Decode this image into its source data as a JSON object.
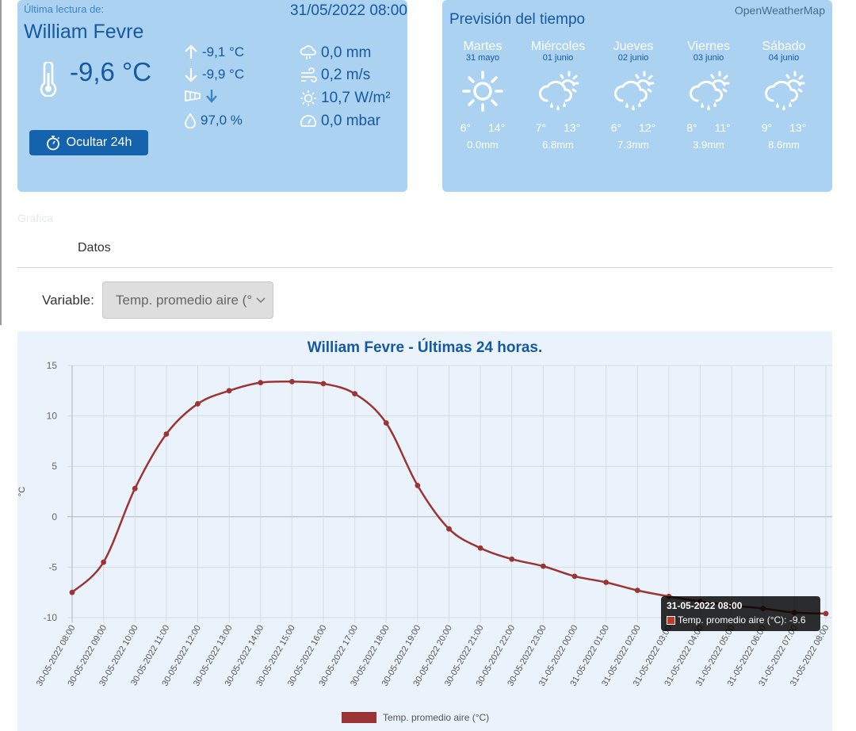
{
  "current": {
    "last_reading_label": "Última lectura de:",
    "datetime": "31/05/2022 08:00",
    "station": "William Fevre",
    "temperature": "-9,6 °C",
    "temp_max": "-9,1 °C",
    "temp_min": "-9,9 °C",
    "humidity": "97,0 %",
    "rain": "0,0 mm",
    "wind": "0,2 m/s",
    "radiation": "10,7 W/m²",
    "pressure": "0,0 mbar",
    "hide_button": "Ocultar 24h",
    "wind_direction_icon": "arrow-down-icon"
  },
  "forecast": {
    "title": "Previsión del tiempo",
    "source": "OpenWeatherMap",
    "days": [
      {
        "name": "Martes",
        "date": "31 mayo",
        "min": "6°",
        "max": "14°",
        "rain": "0.0mm",
        "icon": "sun-icon"
      },
      {
        "name": "Miércoles",
        "date": "01 junio",
        "min": "7°",
        "max": "13°",
        "rain": "6.8mm",
        "icon": "rain-sun-icon"
      },
      {
        "name": "Jueves",
        "date": "02 junio",
        "min": "6°",
        "max": "12°",
        "rain": "7.3mm",
        "icon": "rain-sun-icon"
      },
      {
        "name": "Viernes",
        "date": "03 junio",
        "min": "8°",
        "max": "11°",
        "rain": "3.9mm",
        "icon": "rain-sun-icon"
      },
      {
        "name": "Sábado",
        "date": "04 junio",
        "min": "9°",
        "max": "13°",
        "rain": "8.6mm",
        "icon": "rain-sun-icon"
      }
    ]
  },
  "tabs": {
    "grafica": "Gráfica",
    "datos": "Datos"
  },
  "variable": {
    "label": "Variable:",
    "selected": "Temp. promedio aire (°"
  },
  "colors": {
    "accent": "#1559a0",
    "card": "#acd2f1",
    "series": "#9b3535",
    "button": "#1563ad"
  },
  "chart_data": {
    "type": "line",
    "title": "William Fevre - Últimas 24 horas.",
    "ylabel": "°C",
    "ylim": [
      -10,
      15
    ],
    "yticks": [
      15,
      10,
      5,
      0,
      -5,
      -10
    ],
    "grid": true,
    "legend_position": "bottom",
    "categories": [
      "30-05-2022 08:00",
      "30-05-2022 09:00",
      "30-05-2022 10:00",
      "30-05-2022 11:00",
      "30-05-2022 12:00",
      "30-05-2022 13:00",
      "30-05-2022 14:00",
      "30-05-2022 15:00",
      "30-05-2022 16:00",
      "30-05-2022 17:00",
      "30-05-2022 18:00",
      "30-05-2022 19:00",
      "30-05-2022 20:00",
      "30-05-2022 21:00",
      "30-05-2022 22:00",
      "30-05-2022 23:00",
      "31-05-2022 00:00",
      "31-05-2022 01:00",
      "31-05-2022 02:00",
      "31-05-2022 03:00",
      "31-05-2022 04:00",
      "31-05-2022 05:00",
      "31-05-2022 06:00",
      "31-05-2022 07:00",
      "31-05-2022 08:00"
    ],
    "series": [
      {
        "name": "Temp. promedio aire (°C)",
        "values": [
          -7.5,
          -4.5,
          2.8,
          8.2,
          11.2,
          12.5,
          13.3,
          13.4,
          13.2,
          12.2,
          9.3,
          3.1,
          -1.2,
          -3.1,
          -4.2,
          -4.9,
          -5.9,
          -6.5,
          -7.3,
          -7.9,
          -8.4,
          -8.8,
          -9.1,
          -9.5,
          -9.6
        ]
      }
    ],
    "tooltip": {
      "title": "31-05-2022 08:00",
      "text": "Temp. promedio aire (°C): -9.6"
    }
  }
}
